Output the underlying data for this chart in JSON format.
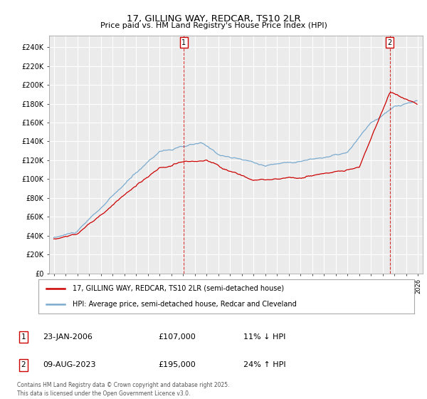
{
  "title": "17, GILLING WAY, REDCAR, TS10 2LR",
  "subtitle": "Price paid vs. HM Land Registry's House Price Index (HPI)",
  "legend_property": "17, GILLING WAY, REDCAR, TS10 2LR (semi-detached house)",
  "legend_hpi": "HPI: Average price, semi-detached house, Redcar and Cleveland",
  "annotation1_date": "23-JAN-2006",
  "annotation1_price": "£107,000",
  "annotation1_hpi": "11% ↓ HPI",
  "annotation2_date": "09-AUG-2023",
  "annotation2_price": "£195,000",
  "annotation2_hpi": "24% ↑ HPI",
  "copyright": "Contains HM Land Registry data © Crown copyright and database right 2025.\nThis data is licensed under the Open Government Licence v3.0.",
  "property_color": "#cc0000",
  "hpi_color": "#7aabcf",
  "vline_color": "#cc0000",
  "background_color": "#ebebeb",
  "grid_color": "#ffffff",
  "yticks": [
    0,
    20000,
    40000,
    60000,
    80000,
    100000,
    120000,
    140000,
    160000,
    180000,
    200000,
    220000,
    240000
  ],
  "sale1_year": 2006.07,
  "sale2_year": 2023.6
}
